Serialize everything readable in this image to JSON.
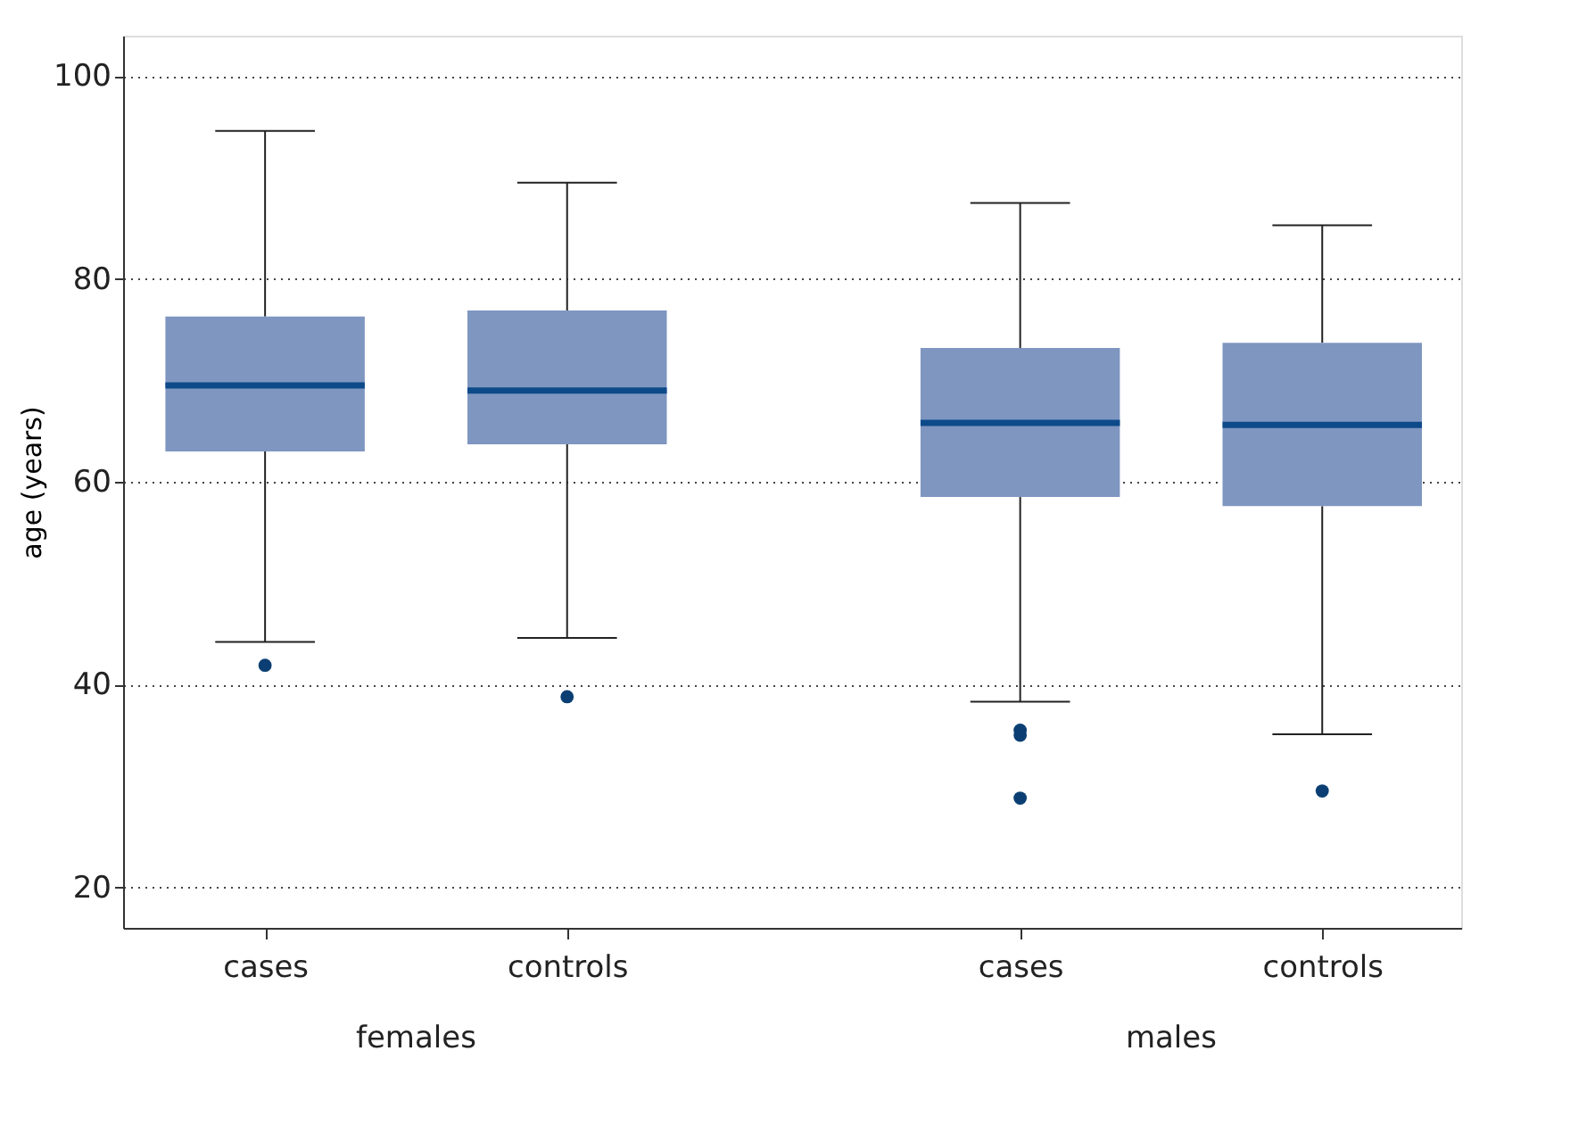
{
  "chart_data": {
    "type": "box",
    "ylabel": "age (years)",
    "categories": [
      "cases",
      "controls",
      "cases",
      "controls"
    ],
    "annotations": [
      "females",
      "males"
    ],
    "ylim": [
      16,
      104
    ],
    "yticks": [
      20,
      40,
      60,
      80,
      100
    ],
    "grid": "y",
    "series": [
      {
        "color": "#7f96c0",
        "boxes": [
          {
            "low": 44.2,
            "q1": 63.0,
            "median": 69.5,
            "q3": 76.3,
            "high": 94.6,
            "outliers": [
              41.9
            ]
          },
          {
            "low": 44.6,
            "q1": 63.7,
            "median": 69.0,
            "q3": 76.9,
            "high": 89.5,
            "outliers": [
              38.8
            ]
          },
          {
            "low": 38.3,
            "q1": 58.5,
            "median": 65.8,
            "q3": 73.2,
            "high": 87.5,
            "outliers": [
              35.5,
              35.0,
              28.8
            ]
          },
          {
            "low": 35.1,
            "q1": 57.6,
            "median": 65.6,
            "q3": 73.7,
            "high": 85.3,
            "outliers": [
              29.5
            ]
          }
        ]
      }
    ]
  }
}
